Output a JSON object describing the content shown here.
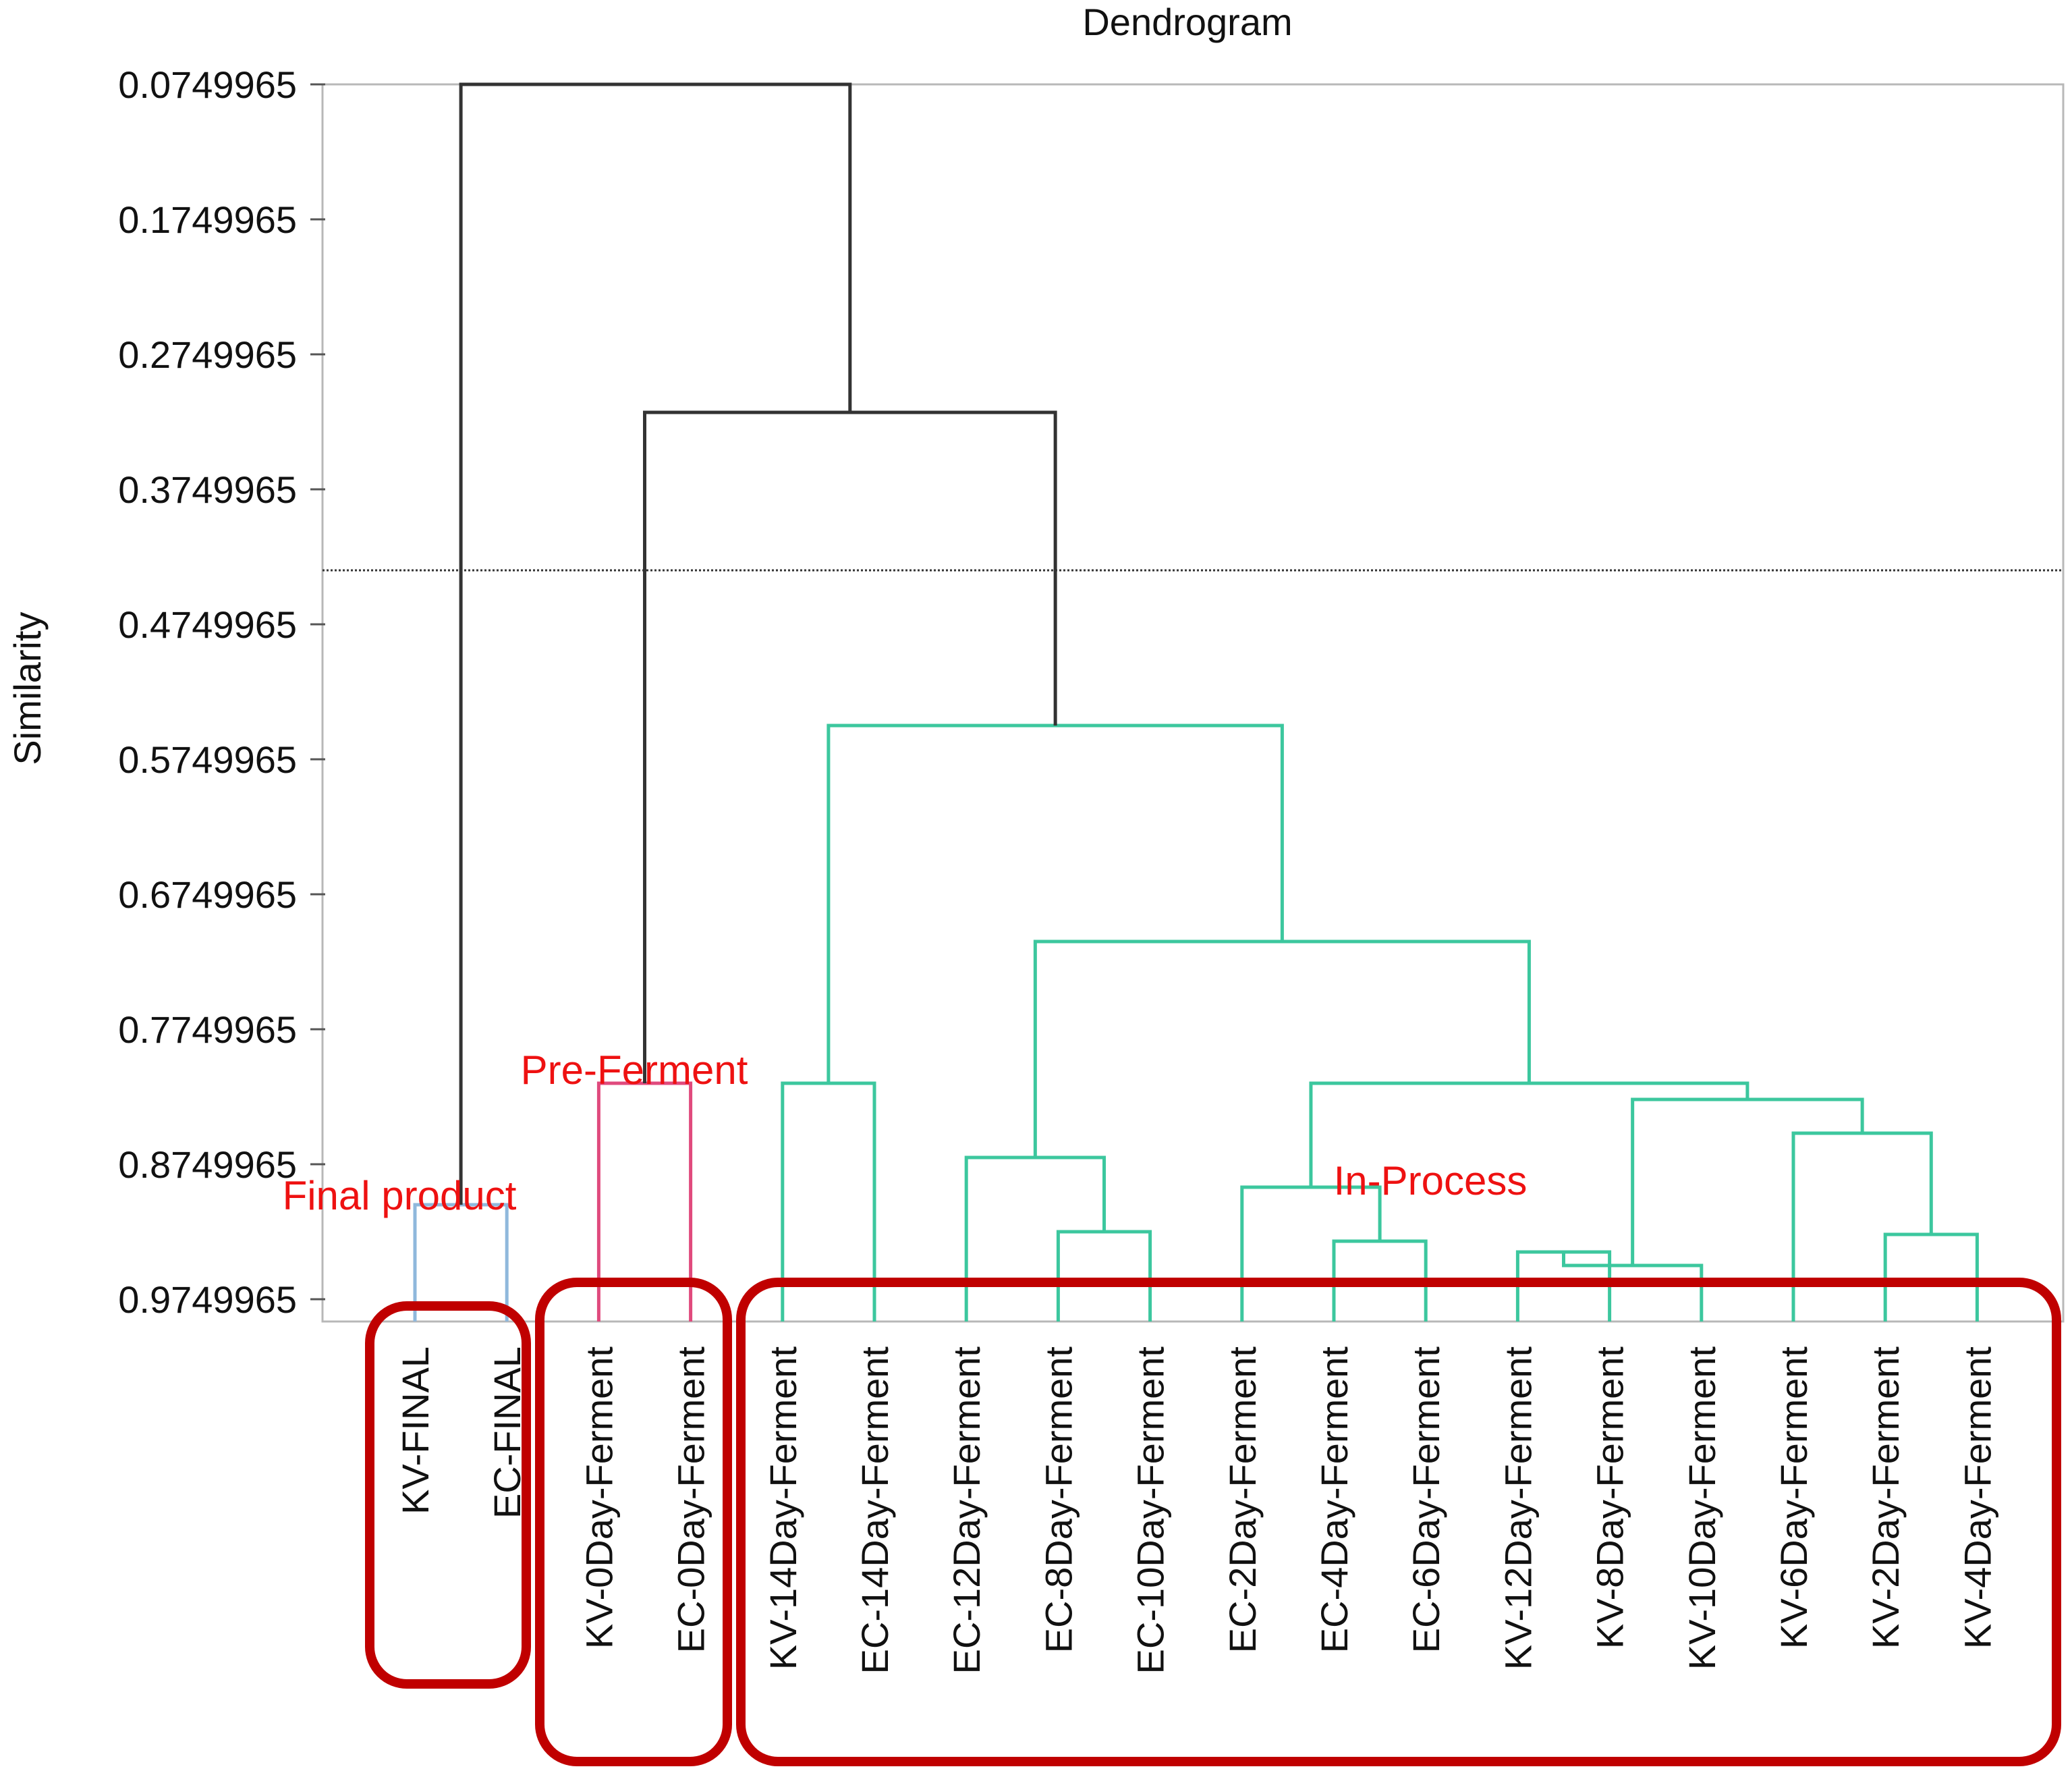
{
  "chart_data": {
    "type": "dendrogram",
    "title": "Dendrogram",
    "ylabel": "Similarity",
    "xlabel": "",
    "y_ticks": [
      "0.0749965",
      "0.1749965",
      "0.2749965",
      "0.3749965",
      "0.4749965",
      "0.5749965",
      "0.6749965",
      "0.7749965",
      "0.8749965",
      "0.9749965"
    ],
    "ylim": [
      0.0749965,
      0.995
    ],
    "y_inverted": true,
    "cut_line": 0.435,
    "leaves": [
      "KV-FINAL",
      "EC-FINAL",
      "KV-0Day-Ferment",
      "EC-0Day-Ferment",
      "KV-14Day-Ferment",
      "EC-14Day-Ferment",
      "EC-12Day-Ferment",
      "EC-8Day-Ferment",
      "EC-10Day-Ferment",
      "EC-2Day-Ferment",
      "EC-4Day-Ferment",
      "EC-6Day-Ferment",
      "KV-12Day-Ferment",
      "KV-8Day-Ferment",
      "KV-10Day-Ferment",
      "KV-6Day-Ferment",
      "KV-2Day-Ferment",
      "KV-4Day-Ferment"
    ],
    "merges": [
      {
        "left": 0,
        "right": 1,
        "height": 0.905,
        "color": "#8fb8dc"
      },
      {
        "left": 2,
        "right": 3,
        "height": 0.815,
        "color": "#e04a7d"
      },
      {
        "left": 4,
        "right": 5,
        "height": 0.815,
        "color": "#3cc79e"
      },
      {
        "left": 7,
        "right": 8,
        "height": 0.925,
        "color": "#3cc79e"
      },
      {
        "left": 6,
        "right": "m3",
        "height": 0.87,
        "color": "#3cc79e"
      },
      {
        "left": 10,
        "right": 11,
        "height": 0.932,
        "color": "#3cc79e"
      },
      {
        "left": 9,
        "right": "m5",
        "height": 0.892,
        "color": "#3cc79e"
      },
      {
        "left": 12,
        "right": 13,
        "height": 0.94,
        "color": "#3cc79e"
      },
      {
        "left": "m7",
        "right": 14,
        "height": 0.95,
        "color": "#3cc79e"
      },
      {
        "left": 16,
        "right": 17,
        "height": 0.927,
        "color": "#3cc79e"
      },
      {
        "left": 15,
        "right": "m9",
        "height": 0.852,
        "color": "#3cc79e"
      },
      {
        "left": "m8",
        "right": "m10",
        "height": 0.827,
        "color": "#3cc79e"
      },
      {
        "left": "m6",
        "right": "m11",
        "height": 0.815,
        "color": "#3cc79e"
      },
      {
        "left": "m4",
        "right": "m12",
        "height": 0.71,
        "color": "#3cc79e"
      },
      {
        "left": "m2",
        "right": "m13",
        "height": 0.55,
        "color": "#3cc79e"
      },
      {
        "left": "m1",
        "right": "m14",
        "height": 0.318,
        "color": "#333333"
      },
      {
        "left": "m0",
        "right": "m15",
        "height": 0.0749965,
        "color": "#333333"
      }
    ],
    "groups": [
      {
        "label": "Final product",
        "leaves": [
          0,
          1
        ]
      },
      {
        "label": "Pre-Ferment",
        "leaves": [
          2,
          3
        ]
      },
      {
        "label": "In-Process",
        "leaves": [
          4,
          17
        ]
      }
    ],
    "colors": {
      "frame": "#b8b8b8",
      "group_box": "#c00000",
      "group_label": "#ee1111",
      "cut_line": "#333333"
    }
  }
}
